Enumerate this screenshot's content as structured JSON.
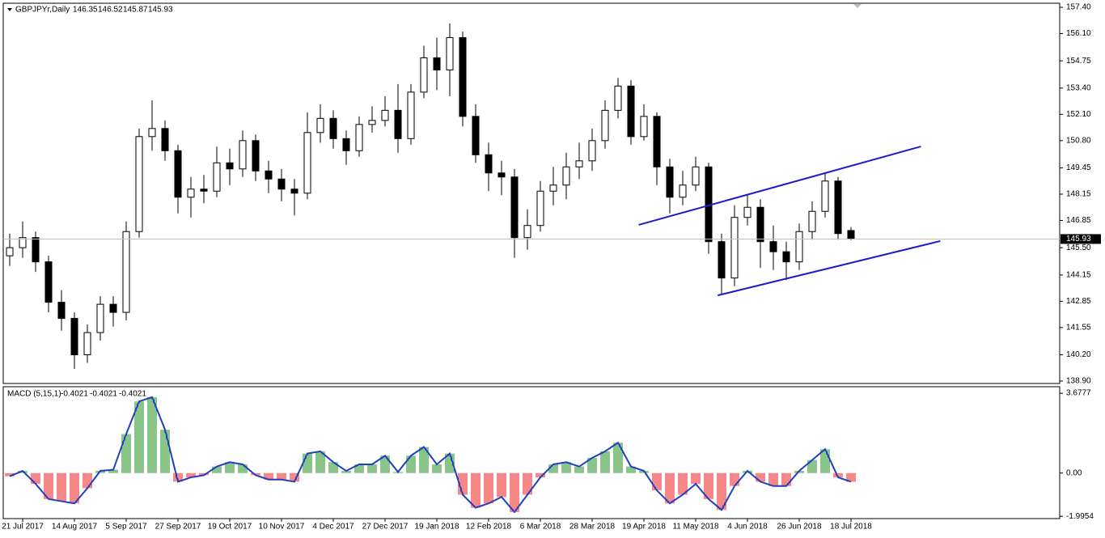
{
  "chart_data": [
    {
      "type": "candlestick",
      "title": "GBPJPYr,Daily",
      "last_bar": [
        146.35,
        146.52,
        145.87,
        145.93
      ],
      "categories": [
        null,
        "21 Jul 2017",
        null,
        null,
        null,
        "14 Aug 2017",
        null,
        null,
        null,
        "5 Sep 2017",
        null,
        null,
        null,
        "27 Sep 2017",
        null,
        null,
        null,
        "19 Oct 2017",
        null,
        null,
        null,
        "10 Nov 2017",
        null,
        null,
        null,
        "4 Dec 2017",
        null,
        null,
        null,
        "27 Dec 2017",
        null,
        null,
        null,
        "19 Jan 2018",
        null,
        null,
        null,
        "12 Feb 2018",
        null,
        null,
        null,
        "6 Mar 2018",
        null,
        null,
        null,
        "28 Mar 2018",
        null,
        null,
        null,
        "19 Apr 2018",
        null,
        null,
        null,
        "11 May 2018",
        null,
        null,
        null,
        "4 Jun 2018",
        null,
        null,
        null,
        "26 Jun 2018",
        null,
        null,
        null,
        "18 Jul 2018"
      ],
      "open": [
        145.1,
        145.5,
        146.0,
        144.8,
        142.8,
        142.0,
        140.2,
        141.3,
        142.7,
        142.3,
        146.3,
        151.0,
        151.4,
        150.3,
        148.0,
        148.4,
        148.3,
        149.7,
        149.4,
        150.8,
        149.3,
        148.9,
        148.4,
        148.2,
        151.2,
        151.9,
        150.9,
        150.3,
        151.6,
        151.8,
        152.3,
        150.9,
        153.2,
        154.9,
        154.3,
        155.9,
        152.0,
        150.1,
        149.2,
        149.0,
        146.0,
        146.6,
        148.3,
        148.6,
        149.5,
        149.8,
        150.8,
        152.3,
        153.5,
        151.0,
        152.0,
        149.5,
        148.0,
        148.6,
        149.5,
        145.8,
        144.0,
        147.0,
        147.5,
        145.8,
        145.3,
        144.8,
        146.3,
        147.3,
        148.8,
        146.35
      ],
      "high": [
        146.2,
        146.8,
        146.3,
        145.1,
        143.4,
        142.3,
        141.7,
        143.1,
        143.1,
        146.8,
        151.4,
        152.8,
        151.8,
        150.6,
        149.0,
        149.1,
        150.5,
        150.4,
        151.3,
        151.1,
        149.8,
        149.4,
        148.9,
        152.2,
        152.6,
        152.3,
        151.3,
        152.0,
        152.5,
        153.0,
        153.6,
        153.6,
        155.5,
        155.9,
        156.6,
        156.2,
        152.6,
        150.7,
        149.8,
        149.4,
        147.4,
        148.8,
        149.5,
        150.2,
        150.7,
        151.4,
        152.8,
        153.9,
        153.8,
        152.6,
        152.2,
        149.9,
        149.3,
        150.0,
        149.7,
        146.2,
        147.6,
        148.1,
        147.9,
        146.6,
        145.8,
        146.7,
        147.8,
        149.2,
        149.0,
        146.52
      ],
      "low": [
        144.6,
        145.0,
        144.3,
        142.3,
        141.4,
        139.5,
        139.8,
        140.9,
        141.6,
        141.9,
        146.0,
        150.3,
        149.8,
        147.2,
        147.0,
        147.7,
        148.0,
        148.6,
        149.0,
        148.8,
        148.2,
        147.8,
        147.1,
        147.9,
        150.7,
        150.4,
        149.6,
        150.0,
        151.2,
        151.5,
        150.2,
        150.6,
        152.9,
        153.3,
        153.0,
        151.5,
        149.7,
        148.3,
        148.1,
        145.0,
        145.4,
        146.3,
        147.6,
        147.9,
        148.9,
        149.3,
        150.4,
        151.9,
        150.6,
        150.8,
        148.6,
        147.2,
        147.6,
        148.3,
        145.2,
        143.2,
        143.6,
        146.6,
        144.5,
        144.4,
        143.9,
        144.4,
        145.9,
        147.0,
        145.9,
        145.87
      ],
      "close": [
        145.5,
        146.0,
        144.8,
        142.8,
        142.0,
        140.2,
        141.3,
        142.7,
        142.3,
        146.3,
        151.0,
        151.4,
        150.3,
        148.0,
        148.4,
        148.3,
        149.7,
        149.4,
        150.8,
        149.3,
        148.9,
        148.4,
        148.2,
        151.2,
        151.9,
        150.9,
        150.3,
        151.6,
        151.8,
        152.3,
        150.9,
        153.2,
        154.9,
        154.3,
        155.9,
        152.0,
        150.1,
        149.2,
        149.0,
        146.0,
        146.6,
        148.3,
        148.6,
        149.5,
        149.8,
        150.8,
        152.3,
        153.5,
        151.0,
        152.0,
        149.5,
        148.0,
        148.6,
        149.5,
        145.8,
        144.0,
        147.0,
        147.5,
        145.8,
        145.3,
        144.8,
        146.3,
        147.3,
        148.8,
        146.2,
        145.93
      ],
      "ylim": [
        138.78,
        157.6
      ],
      "yticks": [
        {
          "value": 157.4,
          "label": "157.40"
        },
        {
          "value": 156.1,
          "label": "156.10"
        },
        {
          "value": 154.75,
          "label": "154.75"
        },
        {
          "value": 153.4,
          "label": "153.40"
        },
        {
          "value": 152.1,
          "label": "152.10"
        },
        {
          "value": 150.8,
          "label": "150.80"
        },
        {
          "value": 149.45,
          "label": "149.45"
        },
        {
          "value": 148.15,
          "label": "148.15"
        },
        {
          "value": 146.85,
          "label": "146.85"
        },
        {
          "value": 145.5,
          "label": "145.50"
        },
        {
          "value": 144.15,
          "label": "144.15"
        },
        {
          "value": 142.85,
          "label": "142.85"
        },
        {
          "value": 141.55,
          "label": "141.55"
        },
        {
          "value": 140.2,
          "label": "140.20"
        },
        {
          "value": 138.9,
          "label": "138.90"
        }
      ],
      "trendlines": [
        {
          "x": [
            48.6,
            70.4
          ],
          "y": [
            146.63,
            150.51
          ]
        },
        {
          "x": [
            54.7,
            71.9
          ],
          "y": [
            143.14,
            145.83
          ]
        }
      ],
      "trendline_color": "#1c1cc8",
      "up_color": "#ffffff",
      "down_color": "#000000",
      "price_line": true
    },
    {
      "type": "macd",
      "title": "MACD (5,15,1)",
      "title_values": [
        -0.4021,
        -0.4021,
        -0.4021
      ],
      "values": [
        -0.15,
        0.1,
        -0.5,
        -1.2,
        -1.3,
        -1.4,
        -0.7,
        0.1,
        0.15,
        1.8,
        3.3,
        3.5,
        2.0,
        -0.4,
        -0.2,
        -0.1,
        0.3,
        0.5,
        0.4,
        -0.1,
        -0.3,
        -0.3,
        -0.4,
        0.9,
        1.0,
        0.5,
        0.1,
        0.4,
        0.4,
        0.8,
        0.05,
        0.8,
        1.2,
        0.4,
        0.9,
        -1.0,
        -1.6,
        -1.4,
        -1.1,
        -1.8,
        -1.0,
        -0.2,
        0.4,
        0.5,
        0.3,
        0.7,
        1.0,
        1.4,
        0.3,
        0.1,
        -0.8,
        -1.4,
        -1.0,
        -0.5,
        -1.2,
        -1.7,
        -0.6,
        0.1,
        -0.4,
        -0.6,
        -0.6,
        0.1,
        0.6,
        1.1,
        -0.2,
        -0.4021
      ],
      "ylim": [
        -2.1,
        3.98
      ],
      "yticks": [
        3.6777,
        {
          "value": 0,
          "label": "0.00"
        },
        -1.9954
      ],
      "pos_color": "#138a13",
      "neg_color": "#ee1111",
      "line_color": "#1f3fbf"
    }
  ]
}
